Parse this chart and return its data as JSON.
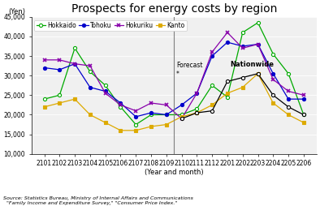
{
  "title": "Prospects for energy costs by region",
  "yen_label": "(Yen)",
  "xlabel": "(Year and month)",
  "ylim": [
    10000,
    45000
  ],
  "yticks": [
    10000,
    15000,
    20000,
    25000,
    30000,
    35000,
    40000,
    45000
  ],
  "ytick_labels": [
    "10,000",
    "15,000",
    "20,000",
    "25,000",
    "30,000",
    "35,000",
    "40,000",
    "45,000"
  ],
  "categories": [
    "2101",
    "2102",
    "2103",
    "2104",
    "2105",
    "2106",
    "2107",
    "2108",
    "2109",
    "2110",
    "2111",
    "2112",
    "2201",
    "2202",
    "2203",
    "2204",
    "2205",
    "2206"
  ],
  "forecast_index": 9,
  "series": [
    {
      "name": "Hokkaido",
      "color": "#00aa00",
      "marker": "o",
      "marker_face": "white",
      "values": [
        24000,
        25000,
        37000,
        31000,
        27500,
        22000,
        17500,
        20000,
        20000,
        20000,
        21500,
        27500,
        24500,
        41000,
        43500,
        35500,
        30500,
        20000
      ]
    },
    {
      "name": "Tohoku",
      "color": "#0000cc",
      "marker": "o",
      "marker_face": "#0000cc",
      "values": [
        32000,
        31500,
        33000,
        27000,
        26000,
        23000,
        19500,
        20500,
        20000,
        22500,
        25500,
        35000,
        38500,
        37500,
        38000,
        30500,
        24000,
        24000
      ]
    },
    {
      "name": "Hokuriku",
      "color": "#8800aa",
      "marker": "x",
      "marker_face": "#8800aa",
      "values": [
        34000,
        34000,
        33000,
        32500,
        25500,
        22500,
        21000,
        23000,
        22500,
        19000,
        25500,
        36000,
        41000,
        37000,
        38000,
        29000,
        26000,
        25000
      ]
    },
    {
      "name": "Kanto",
      "color": "#ddaa00",
      "marker": "s",
      "marker_face": "#ddaa00",
      "values": [
        22000,
        23000,
        24000,
        20000,
        18000,
        16000,
        16000,
        17000,
        17500,
        19500,
        20500,
        22500,
        25500,
        27000,
        30500,
        23000,
        20000,
        18000
      ]
    },
    {
      "name": "Nationwide",
      "color": "#000000",
      "marker": "o",
      "marker_face": "white",
      "values": [
        null,
        null,
        null,
        null,
        null,
        null,
        null,
        null,
        null,
        19000,
        20500,
        21000,
        28500,
        29500,
        30500,
        25000,
        22000,
        20000
      ]
    }
  ],
  "forecast_label": "Forecast\n*",
  "nationwide_label": "Nationwide",
  "source_line1": "Source: Statistics Bureau, Ministry of Internal Affairs and Communications",
  "source_line2": "  \"Family Income and Expenditure Survey,\" \"Consumer Price Index.\"",
  "title_fontsize": 10,
  "tick_fontsize": 5.5,
  "xlabel_fontsize": 6,
  "bg_color": "#f0f0f0"
}
